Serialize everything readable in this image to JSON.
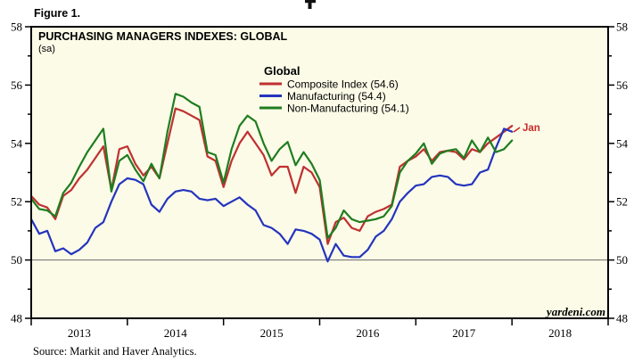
{
  "figure_label": "Figure 1.",
  "source_note": "Source:  Markit and Haver Analytics.",
  "watermark": "yardeni.com",
  "colors": {
    "background": "#fbfbe8",
    "frame": "#000000",
    "gridline": "#6b6b6b",
    "composite": "#c03030",
    "manufacturing": "#2434bd",
    "non_manufacturing": "#1f7d1f",
    "annotation": "#cc2a2a"
  },
  "legend": {
    "header": "Global",
    "entries": [
      {
        "label": "Composite Index (54.6)",
        "color": "#c03030"
      },
      {
        "label": "Manufacturing (54.4)",
        "color": "#2434bd"
      },
      {
        "label": "Non-Manufacturing (54.1)",
        "color": "#1f7d1f"
      }
    ]
  },
  "chart_data": {
    "type": "line",
    "title": "PURCHASING MANAGERS INDEXES: GLOBAL",
    "subtitle": "(sa)",
    "frequency": "monthly",
    "start_month": "2013-01",
    "end_month": "2018-01",
    "x_axis": {
      "year_labels": [
        "2013",
        "2014",
        "2015",
        "2016",
        "2017",
        "2018"
      ],
      "domain_years": [
        2013,
        2019
      ]
    },
    "y_axis": {
      "min": 48,
      "max": 58,
      "labeled_ticks": [
        48,
        50,
        52,
        54,
        56,
        58
      ],
      "minor_tick_step": 1,
      "reference_line": 50,
      "labels_both_sides": true
    },
    "latest_values": {
      "composite": 54.6,
      "manufacturing": 54.4,
      "non_manufacturing": 54.1
    },
    "annotations": [
      {
        "text": "Jan",
        "x_month": "2018-01",
        "y": 54.6,
        "color": "#cc2a2a"
      }
    ],
    "series": [
      {
        "name": "Composite Index",
        "color": "#c03030",
        "values": [
          52.2,
          51.9,
          51.8,
          51.4,
          52.2,
          52.4,
          52.8,
          53.1,
          53.5,
          53.9,
          52.4,
          53.8,
          53.9,
          53.3,
          52.9,
          53.2,
          52.8,
          54.0,
          55.2,
          55.1,
          54.95,
          54.8,
          53.55,
          53.4,
          52.5,
          53.4,
          54.0,
          54.4,
          54.0,
          53.6,
          52.9,
          53.2,
          53.2,
          52.3,
          53.2,
          53.0,
          52.5,
          50.55,
          51.3,
          51.45,
          51.1,
          51.0,
          51.5,
          51.65,
          51.75,
          51.9,
          53.2,
          53.4,
          53.55,
          53.8,
          53.4,
          53.7,
          53.75,
          53.7,
          53.45,
          53.8,
          53.7,
          54.0,
          54.2,
          54.4,
          54.6
        ]
      },
      {
        "name": "Manufacturing",
        "color": "#2434bd",
        "values": [
          51.4,
          50.9,
          51.0,
          50.3,
          50.4,
          50.2,
          50.35,
          50.6,
          51.1,
          51.3,
          52.0,
          52.6,
          52.8,
          52.75,
          52.6,
          51.9,
          51.65,
          52.1,
          52.35,
          52.4,
          52.35,
          52.1,
          52.05,
          52.1,
          51.85,
          52.0,
          52.15,
          51.9,
          51.7,
          51.2,
          51.1,
          50.9,
          50.55,
          51.05,
          51.0,
          50.9,
          50.7,
          49.95,
          50.55,
          50.15,
          50.1,
          50.1,
          50.35,
          50.8,
          51.0,
          51.4,
          52.0,
          52.3,
          52.55,
          52.6,
          52.85,
          52.9,
          52.85,
          52.6,
          52.55,
          52.6,
          53.0,
          53.1,
          53.85,
          54.5,
          54.4
        ]
      },
      {
        "name": "Non-Manufacturing",
        "color": "#1f7d1f",
        "values": [
          52.1,
          51.75,
          51.7,
          51.5,
          52.3,
          52.65,
          53.2,
          53.7,
          54.1,
          54.5,
          52.35,
          53.4,
          53.6,
          53.1,
          52.7,
          53.3,
          52.8,
          54.4,
          55.7,
          55.6,
          55.4,
          55.25,
          53.7,
          53.6,
          52.65,
          53.8,
          54.6,
          54.95,
          54.75,
          54.0,
          53.4,
          53.8,
          54.05,
          53.25,
          53.7,
          53.3,
          52.75,
          50.75,
          51.1,
          51.7,
          51.4,
          51.3,
          51.35,
          51.4,
          51.5,
          51.85,
          53.0,
          53.4,
          53.65,
          54.0,
          53.3,
          53.65,
          53.75,
          53.8,
          53.5,
          54.1,
          53.7,
          54.2,
          53.7,
          53.8,
          54.1
        ]
      }
    ]
  }
}
